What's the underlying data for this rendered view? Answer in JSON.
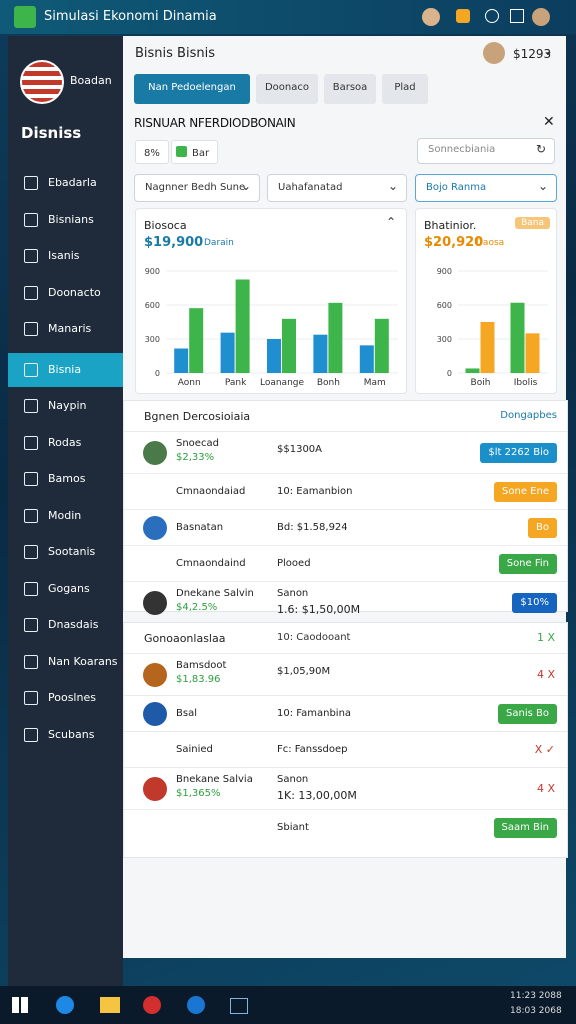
{
  "window": {
    "title": "Simulasi Ekonomi Dinamia"
  },
  "sidebar": {
    "brand": "Boadan",
    "title": "Disniss",
    "active": 5,
    "items": [
      "Ebadarla",
      "Bisnians",
      "Isanis",
      "Doonacto",
      "Manaris",
      "Bisnia",
      "Naypin",
      "Rodas",
      "Bamos",
      "Modin",
      "Sootanis",
      "Gogans",
      "Dnasdais",
      "Nan Koarans",
      "Pooslnes",
      "Scubans"
    ]
  },
  "header": {
    "title": "Bisnis Bisnis",
    "balance": "$1293"
  },
  "tabs": [
    "Nan Pedoelengan",
    "Doonaco",
    "Barsoa",
    "Plad"
  ],
  "active_tab": 0,
  "section": {
    "title": "RISNUAR NFERDIODBONAIN",
    "chips": [
      "8%",
      "Bar"
    ],
    "search": "Sonnecbiania",
    "dropdowns": [
      "Nagnner Bedh Sune",
      "Uahafanatad",
      "Bojo Ranma"
    ]
  },
  "charts": [
    {
      "title": "Biosoca",
      "value": "$19,900",
      "subtitle": "Darain",
      "categories": [
        "Aonn",
        "Pank",
        "Loanange",
        "Bonh",
        "Mam"
      ],
      "series": [
        {
          "color": "#1f8fd0",
          "values": [
            216,
            356,
            300,
            338,
            244
          ]
        },
        {
          "color": "#3db54a",
          "values": [
            572,
            825,
            478,
            619,
            478
          ]
        }
      ],
      "ylim": [
        0,
        900
      ],
      "yticks": [
        0,
        300,
        600,
        900
      ]
    },
    {
      "title": "Bhatinior.",
      "value": "$20,920",
      "subtitle": "Daosa",
      "badge": "Bana",
      "categories": [
        "Boih",
        "Ibolis"
      ],
      "series": [
        {
          "color": "#3db54a",
          "values": [
            40,
            620
          ]
        },
        {
          "color": "#f5a623",
          "values": [
            450,
            350
          ]
        }
      ],
      "ylim": [
        0,
        900
      ],
      "yticks": [
        0,
        300,
        600,
        900
      ]
    }
  ],
  "tables": [
    {
      "title": "Bgnen Dercosioiaia",
      "link": "Dongapbes",
      "rows": [
        {
          "name": "Snoecad",
          "sub": "$2,33%",
          "detail": "$$1300A",
          "badge": "$lt 2262 Bio",
          "badge_color": "#1a8fc9",
          "icon": "#4a7a4a"
        },
        {
          "name": "Cmnaondaiad",
          "detail": "10: Eamanbion",
          "badge": "Sone Ene",
          "badge_color": "#f5a623"
        },
        {
          "name": "Basnatan",
          "detail": "Bd: $1.58,924",
          "badge": "Bo",
          "badge_color": "#f5a623",
          "icon": "#2a6fbd"
        },
        {
          "name": "Cmnaondaind",
          "detail": "Plooed",
          "badge": "Sone Fin",
          "badge_color": "#3aa847"
        },
        {
          "name": "Dnekane Salvin",
          "sub": "$4,2.5%",
          "detail": "Sanon",
          "detail_sub": "1.6: $1,50,00M",
          "badge": "$10%",
          "badge_color": "#1565c0",
          "icon": "#333333"
        }
      ]
    },
    {
      "title": "Gonoaonlaslaa",
      "detail": "10: Caodooant",
      "actions": "1 X",
      "rows": [
        {
          "name": "Bamsdoot",
          "sub": "$1,83.96",
          "detail": "$1,05,90M",
          "actions": "4 X",
          "icon": "#b5651d"
        },
        {
          "name": "Bsal",
          "detail": "10: Famanbina",
          "badge": "Sanis Bo",
          "badge_color": "#3aa847",
          "icon": "#1e5aa8"
        },
        {
          "name": "Sainied",
          "detail": "Fc: Fanssdoep",
          "actions": "X ✓"
        },
        {
          "name": "Bnekane Salvia",
          "sub": "$1,365%",
          "detail": "Sanon",
          "detail_sub": "1K: 13,00,00M",
          "actions": "4 X",
          "icon": "#c0392b"
        },
        {
          "detail": "Sbiant",
          "badge": "Saam Bin",
          "badge_color": "#3aa847"
        }
      ]
    }
  ],
  "taskbar": {
    "time": "11:23 2088",
    "date": "18:03 2068"
  }
}
